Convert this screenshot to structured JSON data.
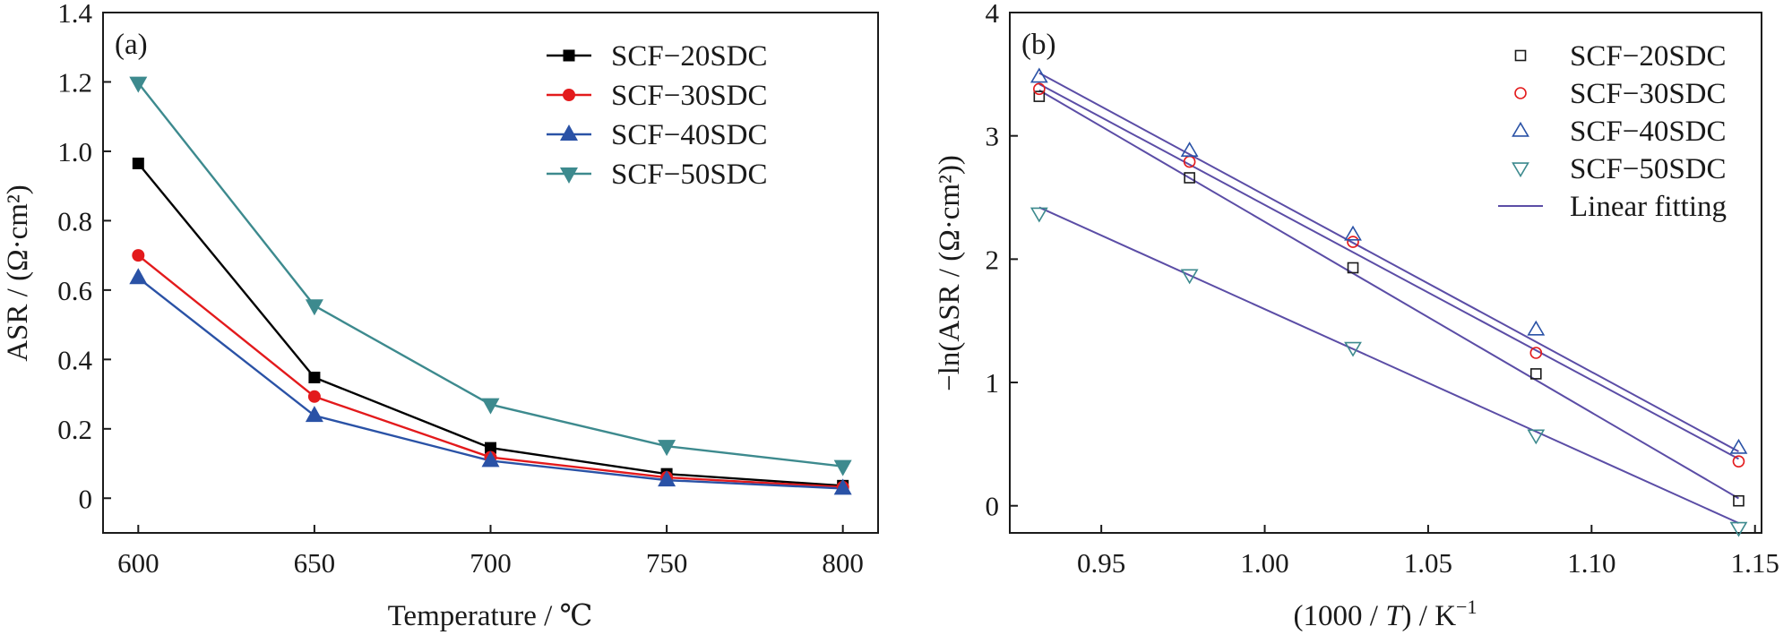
{
  "chart_data": [
    {
      "type": "line",
      "panel_label": "(a)",
      "xlabel": "Temperature / ℃",
      "ylabel": "ASR / (Ω·cm²)",
      "xlim": [
        590,
        810
      ],
      "ylim": [
        -0.1,
        1.4
      ],
      "xticks": [
        600,
        650,
        700,
        750,
        800
      ],
      "xtick_labels": [
        "600",
        "650",
        "700",
        "750",
        "800"
      ],
      "yticks": [
        0,
        0.2,
        0.4,
        0.6,
        0.8,
        1.0,
        1.2,
        1.4
      ],
      "ytick_labels": [
        "0",
        "0.2",
        "0.4",
        "0.6",
        "0.8",
        "1.0",
        "1.2",
        "1.4"
      ],
      "legend_position": "top-right",
      "x": [
        600,
        650,
        700,
        750,
        800
      ],
      "series": [
        {
          "name": "SCF−20SDC",
          "marker": "square",
          "color": "#000000",
          "values": [
            0.965,
            0.348,
            0.145,
            0.07,
            0.036
          ]
        },
        {
          "name": "SCF−30SDC",
          "marker": "circle",
          "color": "#e31a1c",
          "values": [
            0.7,
            0.293,
            0.118,
            0.06,
            0.032
          ]
        },
        {
          "name": "SCF−40SDC",
          "marker": "triangle-up",
          "color": "#2a52a6",
          "values": [
            0.635,
            0.238,
            0.108,
            0.052,
            0.028
          ]
        },
        {
          "name": "SCF−50SDC",
          "marker": "triangle-down",
          "color": "#3d8a8e",
          "values": [
            1.197,
            0.555,
            0.27,
            0.15,
            0.092
          ]
        }
      ]
    },
    {
      "type": "scatter",
      "panel_label": "(b)",
      "xlabel_parts": {
        "prefix": "(1000 / ",
        "italic": "T",
        "suffix": ") / K",
        "superscript": "−1"
      },
      "ylabel": "−ln(ASR / (Ω·cm²))",
      "xlim": [
        0.922,
        1.152
      ],
      "ylim": [
        -0.22,
        4.0
      ],
      "xticks": [
        0.95,
        1.0,
        1.05,
        1.1,
        1.15
      ],
      "xtick_labels": [
        "0.95",
        "1.00",
        "1.05",
        "1.10",
        "1.15"
      ],
      "yticks": [
        0,
        1,
        2,
        3,
        4
      ],
      "ytick_labels": [
        "0",
        "1",
        "2",
        "3",
        "4"
      ],
      "legend_position": "top-right",
      "x": [
        0.931,
        0.977,
        1.027,
        1.083,
        1.145
      ],
      "fit_color": "#5b4da6",
      "fit_label": "Linear fitting",
      "series": [
        {
          "name": "SCF−20SDC",
          "marker": "open-square",
          "color": "#1a1a1a",
          "values": [
            3.32,
            2.66,
            1.93,
            1.07,
            0.04
          ],
          "fit": [
            3.37,
            0.06
          ]
        },
        {
          "name": "SCF−30SDC",
          "marker": "open-circle",
          "color": "#e31a1c",
          "values": [
            3.38,
            2.79,
            2.14,
            1.24,
            0.36
          ],
          "fit": [
            3.42,
            0.38
          ]
        },
        {
          "name": "SCF−40SDC",
          "marker": "open-triangle-up",
          "color": "#2a52a6",
          "values": [
            3.48,
            2.88,
            2.2,
            1.43,
            0.47
          ],
          "fit": [
            3.51,
            0.44
          ]
        },
        {
          "name": "SCF−50SDC",
          "marker": "open-triangle-down",
          "color": "#3d8a8e",
          "values": [
            2.37,
            1.87,
            1.28,
            0.57,
            -0.18
          ],
          "fit": [
            2.42,
            -0.14
          ]
        }
      ]
    }
  ]
}
